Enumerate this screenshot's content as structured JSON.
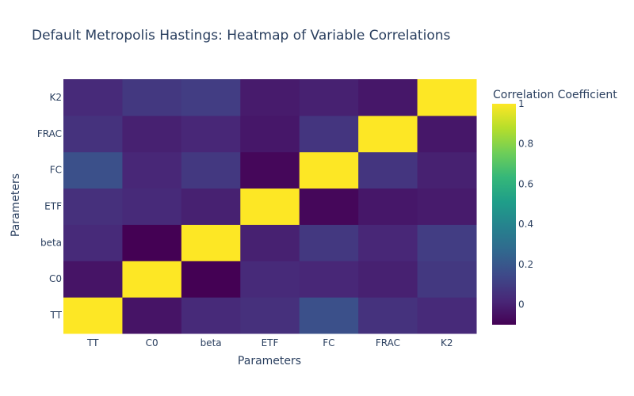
{
  "chart_data": {
    "type": "heatmap",
    "title": "Default Metropolis Hastings: Heatmap of Variable Correlations",
    "xlabel": "Parameters",
    "ylabel": "Parameters",
    "x": [
      "TT",
      "C0",
      "beta",
      "ETF",
      "FC",
      "FRAC",
      "K2"
    ],
    "y": [
      "TT",
      "C0",
      "beta",
      "ETF",
      "FC",
      "FRAC",
      "K2"
    ],
    "z": [
      [
        1.0,
        -0.04,
        0.03,
        0.05,
        0.17,
        0.06,
        0.03
      ],
      [
        -0.04,
        1.0,
        -0.1,
        0.03,
        0.02,
        0.0,
        0.08
      ],
      [
        0.03,
        -0.1,
        1.0,
        0.0,
        0.08,
        0.02,
        0.1
      ],
      [
        0.05,
        0.03,
        0.0,
        1.0,
        -0.08,
        -0.03,
        -0.02
      ],
      [
        0.17,
        0.02,
        0.08,
        -0.08,
        1.0,
        0.07,
        0.0
      ],
      [
        0.06,
        0.0,
        0.02,
        -0.03,
        0.07,
        1.0,
        -0.03
      ],
      [
        0.03,
        0.08,
        0.1,
        -0.02,
        0.0,
        -0.03,
        1.0
      ]
    ],
    "zmin": -0.1,
    "zmax": 1.0,
    "colorscale": "Viridis",
    "colorbar": {
      "title": "Correlation Coefficient",
      "ticks": [
        0,
        0.2,
        0.4,
        0.6,
        0.8,
        1
      ],
      "tick_labels": [
        "0",
        "0.2",
        "0.4",
        "0.6",
        "0.8",
        "1"
      ]
    },
    "grid": false,
    "legend": "colorbar-right"
  }
}
